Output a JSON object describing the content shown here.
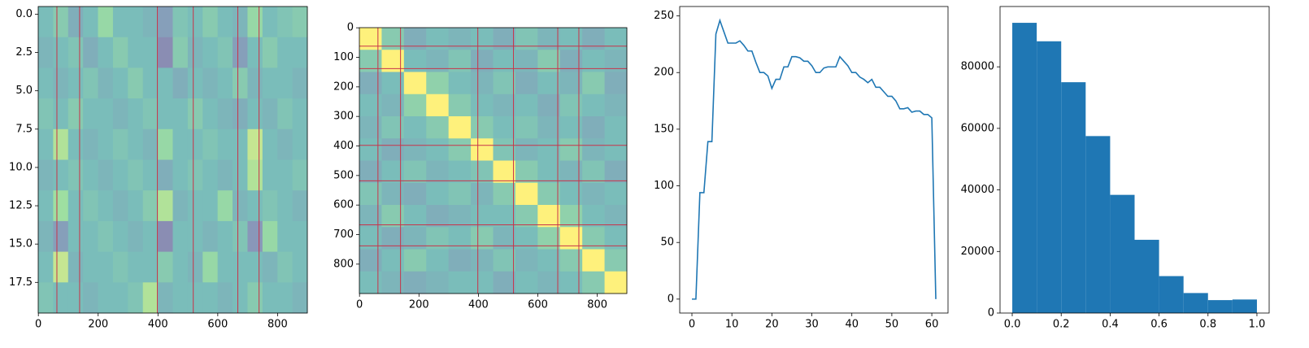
{
  "chart_data": [
    {
      "type": "heatmap",
      "xlim": [
        -0.5,
        899.5
      ],
      "ylim": [
        19.5,
        -0.5
      ],
      "xticks": [
        0,
        200,
        400,
        600,
        800
      ],
      "yticks": [
        {
          "value": 0,
          "label": "0.0"
        },
        {
          "value": 2.5,
          "label": "2.5"
        },
        {
          "value": 5,
          "label": "5.0"
        },
        {
          "value": 7.5,
          "label": "7.5"
        },
        {
          "value": 10,
          "label": "10.0"
        },
        {
          "value": 12.5,
          "label": "12.5"
        },
        {
          "value": 15,
          "label": "15.0"
        },
        {
          "value": 17.5,
          "label": "17.5"
        }
      ],
      "colormap": [
        "#440154",
        "#3b528b",
        "#21918c",
        "#5ec962",
        "#fde725"
      ],
      "alpha": 0.6,
      "line_color": "#c8344a",
      "vlines": [
        62,
        138,
        398,
        518,
        667,
        738
      ],
      "values": [
        [
          0.5,
          0.6,
          0.4,
          0.5,
          0.7,
          0.5,
          0.5,
          0.45,
          0.3,
          0.55,
          0.5,
          0.6,
          0.5,
          0.45,
          0.7,
          0.5,
          0.55,
          0.6
        ],
        [
          0.45,
          0.5,
          0.55,
          0.4,
          0.5,
          0.6,
          0.5,
          0.5,
          0.2,
          0.6,
          0.45,
          0.5,
          0.55,
          0.3,
          0.5,
          0.6,
          0.5,
          0.5
        ],
        [
          0.5,
          0.45,
          0.5,
          0.55,
          0.45,
          0.5,
          0.6,
          0.5,
          0.5,
          0.4,
          0.5,
          0.45,
          0.5,
          0.6,
          0.45,
          0.5,
          0.5,
          0.45
        ],
        [
          0.55,
          0.5,
          0.6,
          0.5,
          0.5,
          0.45,
          0.5,
          0.55,
          0.5,
          0.5,
          0.6,
          0.5,
          0.45,
          0.4,
          0.5,
          0.45,
          0.55,
          0.5
        ],
        [
          0.5,
          0.8,
          0.5,
          0.45,
          0.5,
          0.55,
          0.5,
          0.45,
          0.7,
          0.5,
          0.5,
          0.55,
          0.5,
          0.5,
          0.85,
          0.5,
          0.45,
          0.5
        ],
        [
          0.45,
          0.5,
          0.55,
          0.5,
          0.45,
          0.5,
          0.55,
          0.5,
          0.4,
          0.5,
          0.55,
          0.5,
          0.45,
          0.5,
          0.8,
          0.5,
          0.5,
          0.55
        ],
        [
          0.5,
          0.75,
          0.5,
          0.55,
          0.5,
          0.45,
          0.5,
          0.6,
          0.8,
          0.45,
          0.5,
          0.5,
          0.7,
          0.45,
          0.5,
          0.55,
          0.5,
          0.45
        ],
        [
          0.45,
          0.3,
          0.5,
          0.5,
          0.55,
          0.5,
          0.45,
          0.5,
          0.2,
          0.5,
          0.5,
          0.45,
          0.5,
          0.55,
          0.25,
          0.7,
          0.5,
          0.5
        ],
        [
          0.5,
          0.85,
          0.45,
          0.5,
          0.5,
          0.55,
          0.5,
          0.5,
          0.6,
          0.5,
          0.45,
          0.7,
          0.5,
          0.5,
          0.5,
          0.45,
          0.55,
          0.5
        ],
        [
          0.55,
          0.5,
          0.5,
          0.45,
          0.5,
          0.5,
          0.55,
          0.8,
          0.45,
          0.5,
          0.5,
          0.5,
          0.45,
          0.5,
          0.6,
          0.5,
          0.5,
          0.45
        ]
      ]
    },
    {
      "type": "heatmap",
      "xlim": [
        -0.5,
        899.5
      ],
      "ylim": [
        899.5,
        -0.5
      ],
      "xticks": [
        0,
        200,
        400,
        600,
        800
      ],
      "yticks": [
        0,
        100,
        200,
        300,
        400,
        500,
        600,
        700,
        800
      ],
      "colormap": [
        "#440154",
        "#3b528b",
        "#21918c",
        "#5ec962",
        "#fde725"
      ],
      "alpha": 0.6,
      "line_color": "#c8344a",
      "vlines": [
        62,
        138,
        398,
        518,
        667,
        738
      ],
      "hlines": [
        62,
        138,
        398,
        518,
        667,
        738
      ],
      "values": [
        [
          1,
          0.6,
          0.4,
          0.5,
          0.45,
          0.5,
          0.4,
          0.55,
          0.45,
          0.5,
          0.4,
          0.5
        ],
        [
          0.6,
          1,
          0.5,
          0.45,
          0.55,
          0.4,
          0.5,
          0.45,
          0.6,
          0.4,
          0.5,
          0.45
        ],
        [
          0.4,
          0.5,
          1,
          0.65,
          0.5,
          0.45,
          0.55,
          0.4,
          0.5,
          0.45,
          0.6,
          0.4
        ],
        [
          0.5,
          0.45,
          0.65,
          1,
          0.6,
          0.5,
          0.45,
          0.5,
          0.4,
          0.55,
          0.5,
          0.45
        ],
        [
          0.45,
          0.55,
          0.5,
          0.6,
          1,
          0.6,
          0.5,
          0.55,
          0.45,
          0.5,
          0.4,
          0.5
        ],
        [
          0.5,
          0.4,
          0.45,
          0.5,
          0.6,
          1,
          0.55,
          0.45,
          0.5,
          0.6,
          0.45,
          0.5
        ],
        [
          0.4,
          0.5,
          0.55,
          0.45,
          0.5,
          0.55,
          1,
          0.6,
          0.5,
          0.45,
          0.55,
          0.4
        ],
        [
          0.55,
          0.45,
          0.4,
          0.5,
          0.55,
          0.45,
          0.6,
          1,
          0.6,
          0.5,
          0.45,
          0.5
        ],
        [
          0.45,
          0.6,
          0.5,
          0.4,
          0.45,
          0.5,
          0.5,
          0.6,
          1,
          0.65,
          0.5,
          0.45
        ],
        [
          0.5,
          0.4,
          0.45,
          0.55,
          0.5,
          0.6,
          0.45,
          0.5,
          0.65,
          1,
          0.6,
          0.5
        ],
        [
          0.4,
          0.5,
          0.6,
          0.5,
          0.4,
          0.45,
          0.55,
          0.45,
          0.5,
          0.6,
          1,
          0.6
        ],
        [
          0.5,
          0.45,
          0.4,
          0.45,
          0.5,
          0.5,
          0.4,
          0.5,
          0.45,
          0.5,
          0.6,
          1
        ]
      ]
    },
    {
      "type": "line",
      "xlim": [
        -3.05,
        64.05
      ],
      "ylim": [
        -12.3,
        258.3
      ],
      "xticks": [
        0,
        10,
        20,
        30,
        40,
        50,
        60
      ],
      "yticks": [
        0,
        50,
        100,
        150,
        200,
        250
      ],
      "color": "#1f77b4",
      "x": [
        0,
        1,
        2,
        3,
        4,
        5,
        6,
        7,
        8,
        9,
        10,
        11,
        12,
        13,
        14,
        15,
        16,
        17,
        18,
        19,
        20,
        21,
        22,
        23,
        24,
        25,
        26,
        27,
        28,
        29,
        30,
        31,
        32,
        33,
        34,
        35,
        36,
        37,
        38,
        39,
        40,
        41,
        42,
        43,
        44,
        45,
        46,
        47,
        48,
        49,
        50,
        51,
        52,
        53,
        54,
        55,
        56,
        57,
        58,
        59,
        60,
        61
      ],
      "values": [
        0,
        0,
        94,
        94,
        139,
        139,
        234,
        246,
        236,
        226,
        226,
        226,
        228,
        224,
        219,
        219,
        209,
        200,
        200,
        197,
        186,
        194,
        194,
        205,
        205,
        214,
        214,
        213,
        210,
        210,
        206,
        200,
        200,
        204,
        205,
        205,
        205,
        214,
        210,
        206,
        200,
        200,
        196,
        194,
        191,
        194,
        187,
        187,
        183,
        179,
        179,
        175,
        168,
        168,
        169,
        165,
        166,
        166,
        163,
        163,
        160,
        0
      ]
    },
    {
      "type": "histogram",
      "xlim": [
        -0.05,
        1.05
      ],
      "ylim": [
        0,
        99600
      ],
      "xticks": [
        {
          "value": 0,
          "label": "0.0"
        },
        {
          "value": 0.2,
          "label": "0.2"
        },
        {
          "value": 0.4,
          "label": "0.4"
        },
        {
          "value": 0.6,
          "label": "0.6"
        },
        {
          "value": 0.8,
          "label": "0.8"
        },
        {
          "value": 1,
          "label": "1.0"
        }
      ],
      "yticks": [
        0,
        20000,
        40000,
        60000,
        80000
      ],
      "color": "#1f77b4",
      "bins": [
        0,
        0.1,
        0.2,
        0.3,
        0.4,
        0.5,
        0.6,
        0.7,
        0.8,
        0.9,
        1
      ],
      "values": [
        94300,
        88300,
        75000,
        57500,
        38400,
        23800,
        12000,
        6500,
        4200,
        4400
      ]
    }
  ]
}
